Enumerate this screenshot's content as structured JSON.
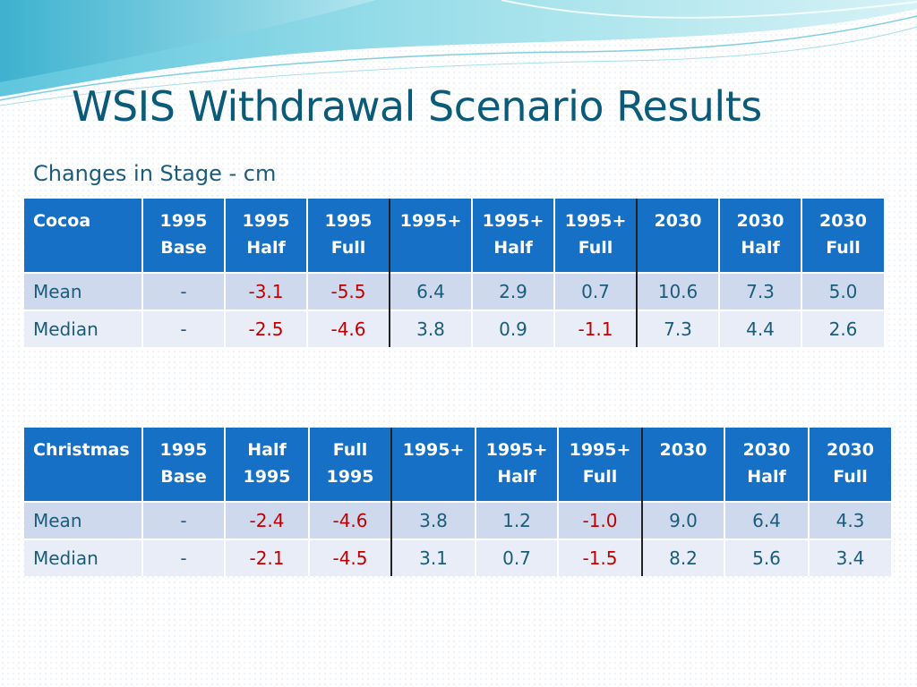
{
  "slide": {
    "title": "WSIS Withdrawal Scenario Results",
    "subtitle": "Changes in Stage - cm"
  },
  "colors": {
    "title": "#0a5a7a",
    "header_bg": "#1570c6",
    "row_odd": "#cfd9ee",
    "row_even": "#e8edf7",
    "negative": "#c00000",
    "text": "#1a5c7a"
  },
  "cocoa_table": {
    "headers": [
      [
        "Cocoa"
      ],
      [
        "1995",
        "Base"
      ],
      [
        "1995",
        "Half"
      ],
      [
        "1995",
        "Full"
      ],
      [
        "1995+"
      ],
      [
        "1995+",
        "Half"
      ],
      [
        "1995+",
        "Full"
      ],
      [
        "2030"
      ],
      [
        "2030",
        "Half"
      ],
      [
        "2030",
        "Full"
      ]
    ],
    "rows": [
      {
        "label": "Mean",
        "values": [
          "-",
          "-3.1",
          "-5.5",
          "6.4",
          "2.9",
          "0.7",
          "10.6",
          "7.3",
          "5.0"
        ]
      },
      {
        "label": "Median",
        "values": [
          "-",
          "-2.5",
          "-4.6",
          "3.8",
          "0.9",
          "-1.1",
          "7.3",
          "4.4",
          "2.6"
        ]
      }
    ]
  },
  "christmas_table": {
    "headers": [
      [
        "Christmas"
      ],
      [
        "1995",
        "Base"
      ],
      [
        "Half",
        "1995"
      ],
      [
        "Full",
        "1995"
      ],
      [
        "1995+"
      ],
      [
        "1995+",
        "Half"
      ],
      [
        "1995+",
        "Full"
      ],
      [
        "2030"
      ],
      [
        "2030",
        "Half"
      ],
      [
        "2030",
        "Full"
      ]
    ],
    "rows": [
      {
        "label": "Mean",
        "values": [
          "-",
          "-2.4",
          "-4.6",
          "3.8",
          "1.2",
          "-1.0",
          "9.0",
          "6.4",
          "4.3"
        ]
      },
      {
        "label": "Median",
        "values": [
          "-",
          "-2.1",
          "-4.5",
          "3.1",
          "0.7",
          "-1.5",
          "8.2",
          "5.6",
          "3.4"
        ]
      }
    ]
  }
}
